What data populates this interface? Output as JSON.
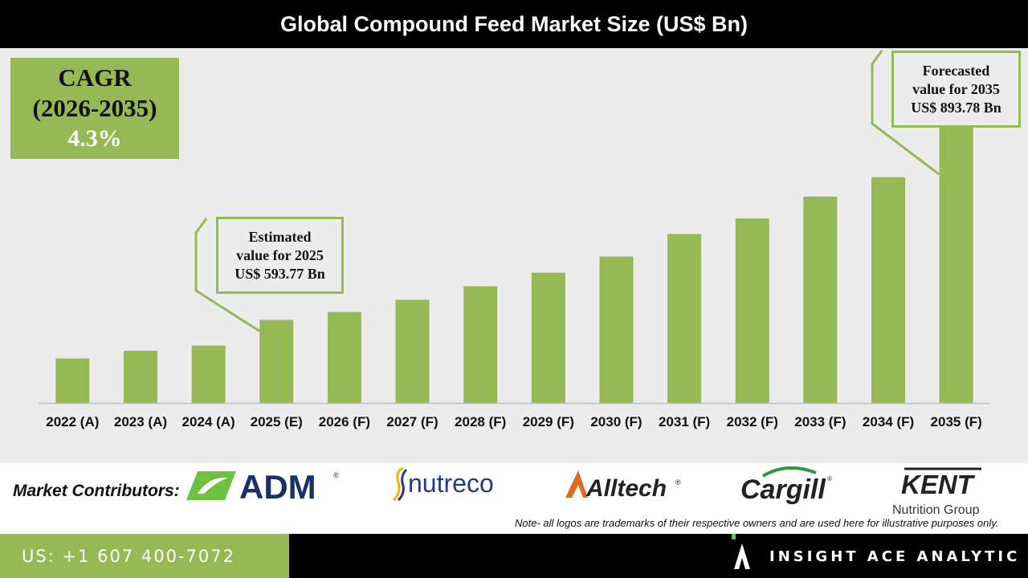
{
  "header": {
    "title": "Global Compound Feed Market Size (US$ Bn)"
  },
  "cagr": {
    "label": "CAGR",
    "period": "(2026-2035)",
    "value": "4.3%"
  },
  "callouts": {
    "estimated": {
      "line1": "Estimated",
      "line2": "value for 2025",
      "line3": "US$ 593.77 Bn"
    },
    "forecasted": {
      "line1": "Forecasted",
      "line2": "value for 2035",
      "line3": "US$ 893.78 Bn"
    }
  },
  "chart_data": {
    "type": "bar",
    "title": "Global Compound Feed Market Size (US$ Bn)",
    "xlabel": "",
    "ylabel": "",
    "categories": [
      "2022 (A)",
      "2023 (A)",
      "2024 (A)",
      "2025 (E)",
      "2026 (F)",
      "2027 (F)",
      "2028 (F)",
      "2029 (F)",
      "2030 (F)",
      "2031 (F)",
      "2032 (F)",
      "2033 (F)",
      "2034 (F)",
      "2035 (F)"
    ],
    "values": [
      534,
      546,
      554,
      593.77,
      606,
      625,
      646,
      667,
      692,
      727,
      751,
      785,
      815,
      893.78
    ],
    "ylim": [
      465,
      903
    ],
    "grid": false,
    "legend": "none",
    "bar_color": "#94b955"
  },
  "contributors": {
    "label": "Market Contributors:",
    "logos": [
      {
        "name": "ADM",
        "text": "ADM",
        "mark": "®",
        "color": "#1b2f6b",
        "accent": "#6ec23f"
      },
      {
        "name": "nutreco",
        "text": "nutreco",
        "color": "#213a8f",
        "accent": "#f2b200"
      },
      {
        "name": "Alltech",
        "text": "Alltech",
        "mark": "®",
        "color": "#222222",
        "accent": "#e06a1b"
      },
      {
        "name": "Cargill",
        "text": "Cargill",
        "mark": "®",
        "color": "#222222",
        "accent": "#2a9a3c"
      },
      {
        "name": "KENT",
        "text": "KENT",
        "sub": "Nutrition Group",
        "color": "#222222"
      }
    ],
    "note": "Note- all logos are trademarks of their respective owners and are used here for illustrative purposes only."
  },
  "footer": {
    "phone": "US: +1 607 400-7072",
    "brand": "INSIGHT ACE ANALYTIC",
    "accent": "#94b955"
  }
}
